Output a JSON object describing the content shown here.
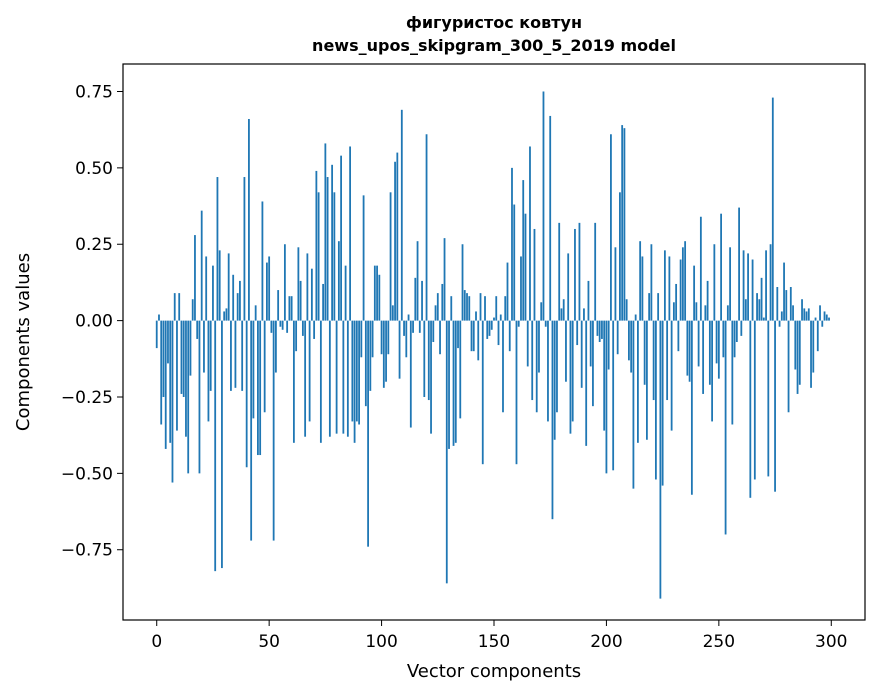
{
  "chart_data": {
    "type": "bar",
    "title": [
      "фигуристос ковтун",
      "news_upos_skipgram_300_5_2019 model"
    ],
    "xlabel": "Vector components",
    "ylabel": "Components values",
    "xlim": [
      -15,
      315
    ],
    "ylim": [
      -0.98,
      0.84
    ],
    "xticks": [
      0,
      50,
      100,
      150,
      200,
      250,
      300
    ],
    "xtick_labels": [
      "0",
      "50",
      "100",
      "150",
      "200",
      "250",
      "300"
    ],
    "yticks": [
      -0.75,
      -0.5,
      -0.25,
      0.0,
      0.25,
      0.5,
      0.75
    ],
    "ytick_labels": [
      "−0.75",
      "−0.50",
      "−0.25",
      "0.00",
      "0.25",
      "0.50",
      "0.75"
    ],
    "grid": false,
    "bar_color": "#1f77b4",
    "values": [
      -0.09,
      0.02,
      -0.34,
      -0.25,
      -0.42,
      -0.14,
      -0.4,
      -0.53,
      0.09,
      -0.36,
      0.09,
      -0.24,
      -0.25,
      -0.38,
      -0.5,
      -0.18,
      0.07,
      0.28,
      -0.06,
      -0.5,
      0.36,
      -0.17,
      0.21,
      -0.33,
      -0.23,
      0.18,
      -0.82,
      0.47,
      0.23,
      -0.81,
      0.03,
      0.04,
      0.22,
      -0.23,
      0.15,
      -0.22,
      0.09,
      0.13,
      -0.23,
      0.47,
      -0.48,
      0.66,
      -0.72,
      -0.32,
      0.05,
      -0.44,
      -0.44,
      0.39,
      -0.3,
      0.19,
      0.21,
      -0.04,
      -0.72,
      -0.17,
      0.1,
      -0.02,
      -0.03,
      0.25,
      -0.04,
      0.08,
      0.08,
      -0.4,
      -0.1,
      0.24,
      0.13,
      -0.05,
      -0.38,
      0.22,
      -0.33,
      0.17,
      -0.06,
      0.49,
      0.42,
      -0.4,
      0.12,
      0.58,
      0.47,
      -0.38,
      0.51,
      0.42,
      -0.37,
      0.26,
      0.54,
      -0.37,
      0.18,
      -0.38,
      0.57,
      -0.33,
      -0.4,
      -0.33,
      -0.34,
      -0.12,
      0.41,
      -0.28,
      -0.74,
      -0.23,
      -0.12,
      0.18,
      0.18,
      0.15,
      -0.11,
      -0.22,
      -0.2,
      -0.11,
      0.42,
      0.05,
      0.52,
      0.55,
      -0.19,
      0.69,
      -0.05,
      -0.12,
      0.02,
      -0.35,
      -0.04,
      0.14,
      0.26,
      -0.04,
      0.13,
      -0.25,
      0.61,
      -0.26,
      -0.37,
      -0.07,
      0.05,
      0.09,
      -0.11,
      0.12,
      0.27,
      -0.86,
      -0.42,
      0.08,
      -0.41,
      -0.4,
      -0.09,
      -0.32,
      0.25,
      0.1,
      0.09,
      0.08,
      -0.1,
      -0.1,
      0.03,
      -0.13,
      0.09,
      -0.47,
      0.08,
      -0.06,
      -0.05,
      -0.03,
      0.01,
      0.08,
      -0.08,
      0.02,
      -0.3,
      0.08,
      0.19,
      -0.1,
      0.5,
      0.38,
      -0.47,
      -0.02,
      0.21,
      0.46,
      0.35,
      -0.15,
      0.57,
      -0.26,
      0.3,
      -0.3,
      -0.17,
      0.06,
      0.75,
      -0.02,
      -0.33,
      0.67,
      -0.65,
      -0.39,
      -0.3,
      0.32,
      0.04,
      0.07,
      -0.2,
      0.22,
      -0.37,
      -0.33,
      0.3,
      -0.08,
      0.32,
      -0.22,
      0.04,
      -0.41,
      0.13,
      -0.15,
      -0.28,
      0.32,
      -0.05,
      -0.07,
      -0.06,
      -0.36,
      -0.5,
      -0.16,
      0.61,
      -0.49,
      0.24,
      -0.11,
      0.42,
      0.64,
      0.63,
      0.07,
      -0.13,
      -0.17,
      -0.55,
      0.02,
      -0.4,
      0.26,
      0.21,
      -0.21,
      -0.39,
      0.09,
      0.25,
      -0.26,
      -0.52,
      0.09,
      -0.91,
      -0.54,
      0.23,
      -0.26,
      0.21,
      -0.36,
      0.06,
      0.12,
      -0.1,
      0.2,
      0.24,
      0.26,
      -0.18,
      -0.2,
      -0.57,
      0.18,
      0.06,
      -0.15,
      0.34,
      -0.24,
      0.05,
      0.13,
      -0.21,
      -0.33,
      0.25,
      -0.14,
      -0.19,
      0.35,
      -0.12,
      -0.7,
      0.05,
      0.24,
      -0.34,
      -0.12,
      -0.07,
      0.37,
      -0.05,
      0.23,
      0.07,
      0.22,
      -0.58,
      0.2,
      -0.52,
      0.09,
      0.07,
      0.14,
      0.01,
      0.23,
      -0.51,
      0.25,
      0.73,
      -0.56,
      0.11,
      -0.02,
      0.03,
      0.19,
      0.1,
      -0.3,
      0.11,
      0.05,
      -0.16,
      -0.24,
      -0.21,
      0.07,
      0.04,
      0.03,
      0.04,
      -0.22,
      -0.17,
      0.01,
      -0.1,
      0.05,
      -0.02,
      0.03,
      0.02,
      0.01
    ]
  }
}
